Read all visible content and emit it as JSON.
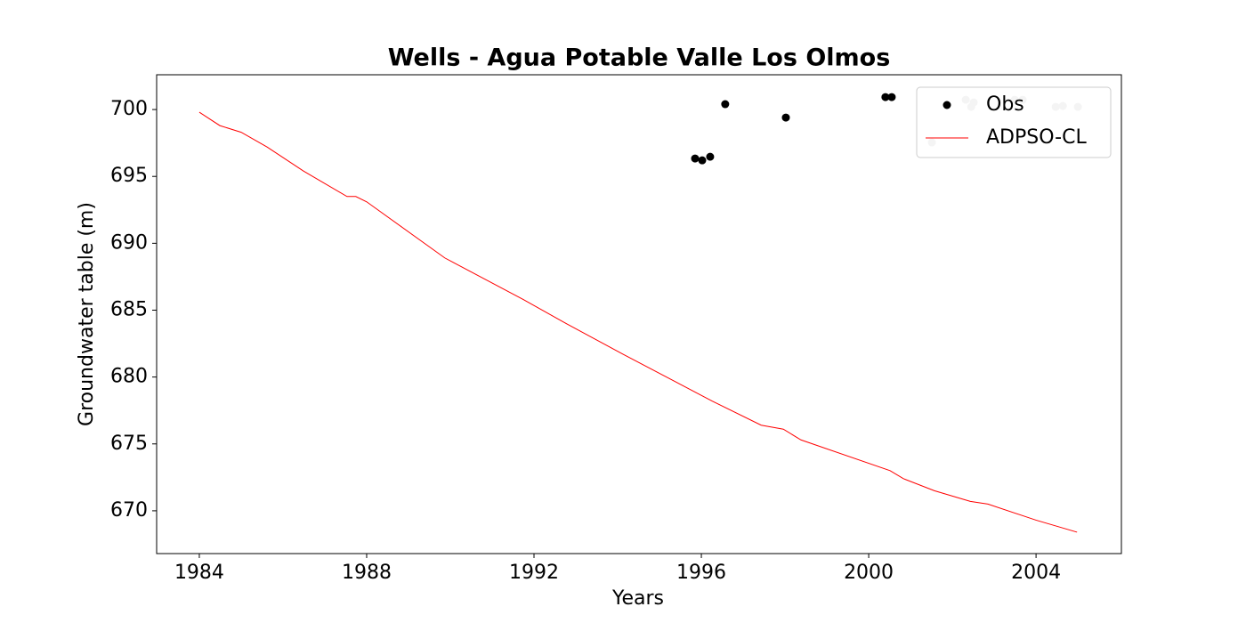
{
  "chart_data": {
    "type": "line",
    "title": "Wells - Agua Potable Valle Los Olmos",
    "xlabel": "Years",
    "ylabel": "Groundwater table (m)",
    "xlim": [
      1982.98,
      2006.04
    ],
    "ylim": [
      666.8,
      702.6
    ],
    "xticks": [
      1984,
      1988,
      1992,
      1996,
      2000,
      2004
    ],
    "yticks": [
      670,
      675,
      680,
      685,
      690,
      695,
      700
    ],
    "legend": "upper right",
    "grid": false,
    "series": [
      {
        "name": "Obs",
        "type": "scatter",
        "color": "#000000",
        "x": [
          1995.85,
          1996.02,
          1996.21,
          1996.57,
          1998.02,
          2000.4,
          2000.55
        ],
        "values": [
          696.34,
          696.2,
          696.47,
          700.4,
          699.4,
          700.93,
          700.93
        ]
      },
      {
        "type": "scatter",
        "color": "#c8c8c8",
        "x": [
          2001.51,
          2002.32,
          2002.45,
          2002.51,
          2003.49,
          2003.68,
          2004.47,
          2004.64,
          2005.0
        ],
        "values": [
          697.54,
          700.73,
          700.2,
          700.53,
          700.73,
          700.73,
          700.2,
          700.27,
          700.2
        ]
      },
      {
        "name": "ADPSO-CL",
        "type": "line",
        "color": "#ff0000",
        "x": [
          1984.0,
          1984.49,
          1985.0,
          1985.62,
          1986.49,
          1987.53,
          1987.74,
          1988.0,
          1989.87,
          1991.74,
          1992.77,
          1994.13,
          1996.26,
          1997.43,
          1997.96,
          1998.38,
          2000.51,
          2000.83,
          2001.57,
          2002.43,
          2002.85,
          2004.0,
          2004.98
        ],
        "values": [
          699.8,
          698.8,
          698.3,
          697.2,
          695.4,
          693.5,
          693.5,
          693.1,
          688.9,
          685.8,
          684.0,
          681.7,
          678.2,
          676.4,
          676.1,
          675.3,
          673.0,
          672.4,
          671.5,
          670.7,
          670.5,
          669.3,
          668.4
        ]
      }
    ]
  }
}
